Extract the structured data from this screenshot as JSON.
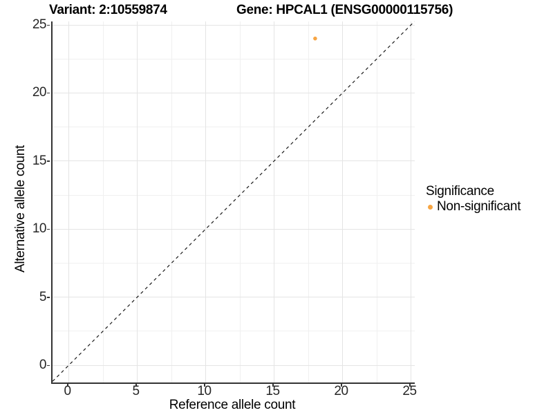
{
  "chart_data": {
    "type": "scatter",
    "title_left": "Variant: 2:10559874",
    "title_right": "Gene: HPCAL1 (ENSG00000115756)",
    "xlabel": "Reference allele count",
    "ylabel": "Alternative allele count",
    "x_axis": {
      "major_ticks": [
        0,
        5,
        10,
        15,
        20,
        25
      ],
      "minor_ticks": [
        2.5,
        7.5,
        12.5,
        17.5,
        22.5
      ],
      "range_displayed": [
        -1.2,
        25.3
      ]
    },
    "y_axis": {
      "major_ticks": [
        0,
        5,
        10,
        15,
        20,
        25
      ],
      "minor_ticks": [
        2.5,
        7.5,
        12.5,
        17.5,
        22.5
      ],
      "range_displayed": [
        -1.3,
        25.2
      ]
    },
    "grid": true,
    "series": [
      {
        "name": "Non-significant",
        "color": "#F7A543",
        "points": [
          {
            "x": 18,
            "y": 24
          }
        ]
      }
    ],
    "reference_line": {
      "slope": 1,
      "intercept": 0,
      "style": "dashed",
      "color": "#1a1a1a"
    },
    "legend": {
      "title": "Significance",
      "position": "right",
      "entries": [
        {
          "label": "Non-significant",
          "color": "#F7A543"
        }
      ]
    }
  },
  "colors": {
    "grid_major": "#e4e4e4",
    "grid_minor": "#f0f0f0",
    "axis_line": "#333333",
    "tick_text": "#262626",
    "title_text": "#000000",
    "background": "#ffffff"
  }
}
